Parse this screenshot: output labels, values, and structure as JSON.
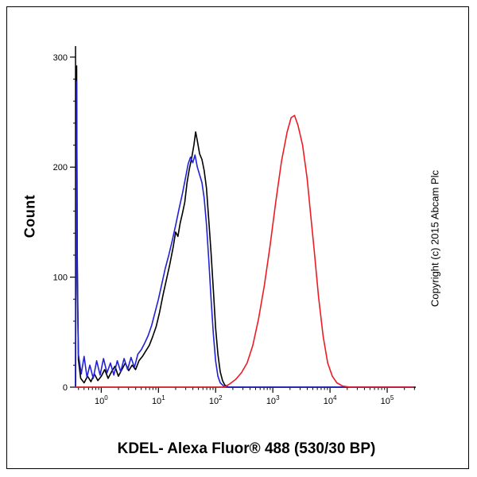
{
  "figure": {
    "copyright": "Copyright (c) 2015 Abcam Plc"
  },
  "chart_data": {
    "type": "line",
    "title": "",
    "xlabel": "KDEL- Alexa Fluor® 488 (530/30 BP)",
    "ylabel": "Count",
    "x_scale": "log10",
    "xlim_log10": [
      -0.45,
      5.5
    ],
    "ylim": [
      0,
      310
    ],
    "x_major_ticks_exponents": [
      0,
      1,
      2,
      3,
      4,
      5
    ],
    "y_ticks": [
      0,
      100,
      200,
      300
    ],
    "grid": false,
    "legend": "none",
    "series": [
      {
        "name": "black",
        "color": "#000000",
        "points": [
          [
            -0.45,
            0
          ],
          [
            -0.44,
            150
          ],
          [
            -0.43,
            292
          ],
          [
            -0.42,
            120
          ],
          [
            -0.4,
            25
          ],
          [
            -0.36,
            8
          ],
          [
            -0.3,
            4
          ],
          [
            -0.24,
            10
          ],
          [
            -0.18,
            5
          ],
          [
            -0.12,
            12
          ],
          [
            -0.06,
            6
          ],
          [
            0.0,
            10
          ],
          [
            0.06,
            16
          ],
          [
            0.12,
            8
          ],
          [
            0.18,
            14
          ],
          [
            0.24,
            19
          ],
          [
            0.3,
            10
          ],
          [
            0.36,
            16
          ],
          [
            0.42,
            22
          ],
          [
            0.48,
            15
          ],
          [
            0.54,
            20
          ],
          [
            0.6,
            16
          ],
          [
            0.66,
            24
          ],
          [
            0.72,
            28
          ],
          [
            0.78,
            33
          ],
          [
            0.84,
            38
          ],
          [
            0.9,
            46
          ],
          [
            0.96,
            55
          ],
          [
            1.02,
            68
          ],
          [
            1.08,
            84
          ],
          [
            1.14,
            98
          ],
          [
            1.2,
            112
          ],
          [
            1.26,
            128
          ],
          [
            1.3,
            141
          ],
          [
            1.34,
            137
          ],
          [
            1.38,
            149
          ],
          [
            1.42,
            158
          ],
          [
            1.46,
            168
          ],
          [
            1.5,
            186
          ],
          [
            1.54,
            198
          ],
          [
            1.58,
            208
          ],
          [
            1.62,
            220
          ],
          [
            1.65,
            232
          ],
          [
            1.68,
            224
          ],
          [
            1.72,
            212
          ],
          [
            1.76,
            207
          ],
          [
            1.8,
            197
          ],
          [
            1.84,
            181
          ],
          [
            1.88,
            152
          ],
          [
            1.92,
            122
          ],
          [
            1.96,
            88
          ],
          [
            2.0,
            54
          ],
          [
            2.04,
            30
          ],
          [
            2.08,
            14
          ],
          [
            2.12,
            6
          ],
          [
            2.16,
            2
          ],
          [
            2.22,
            0
          ],
          [
            5.45,
            0
          ]
        ]
      },
      {
        "name": "blue",
        "color": "#2121d6",
        "points": [
          [
            -0.45,
            0
          ],
          [
            -0.44,
            140
          ],
          [
            -0.43,
            278
          ],
          [
            -0.42,
            100
          ],
          [
            -0.4,
            30
          ],
          [
            -0.35,
            12
          ],
          [
            -0.3,
            28
          ],
          [
            -0.25,
            9
          ],
          [
            -0.2,
            20
          ],
          [
            -0.14,
            8
          ],
          [
            -0.08,
            24
          ],
          [
            -0.02,
            11
          ],
          [
            0.04,
            26
          ],
          [
            0.1,
            13
          ],
          [
            0.16,
            22
          ],
          [
            0.22,
            11
          ],
          [
            0.28,
            24
          ],
          [
            0.34,
            14
          ],
          [
            0.4,
            26
          ],
          [
            0.46,
            16
          ],
          [
            0.52,
            27
          ],
          [
            0.58,
            18
          ],
          [
            0.64,
            30
          ],
          [
            0.7,
            34
          ],
          [
            0.76,
            40
          ],
          [
            0.82,
            47
          ],
          [
            0.88,
            56
          ],
          [
            0.94,
            68
          ],
          [
            1.0,
            80
          ],
          [
            1.06,
            94
          ],
          [
            1.12,
            108
          ],
          [
            1.18,
            120
          ],
          [
            1.24,
            133
          ],
          [
            1.3,
            147
          ],
          [
            1.36,
            162
          ],
          [
            1.42,
            176
          ],
          [
            1.48,
            192
          ],
          [
            1.52,
            203
          ],
          [
            1.56,
            209
          ],
          [
            1.6,
            204
          ],
          [
            1.64,
            211
          ],
          [
            1.68,
            200
          ],
          [
            1.72,
            193
          ],
          [
            1.76,
            186
          ],
          [
            1.8,
            172
          ],
          [
            1.84,
            148
          ],
          [
            1.88,
            116
          ],
          [
            1.92,
            80
          ],
          [
            1.96,
            48
          ],
          [
            2.0,
            24
          ],
          [
            2.04,
            10
          ],
          [
            2.08,
            4
          ],
          [
            2.14,
            1
          ],
          [
            2.2,
            0
          ],
          [
            5.45,
            0
          ]
        ]
      },
      {
        "name": "red",
        "color": "#ed1c24",
        "points": [
          [
            -0.45,
            0
          ],
          [
            2.15,
            0
          ],
          [
            2.25,
            3
          ],
          [
            2.35,
            7
          ],
          [
            2.45,
            13
          ],
          [
            2.55,
            22
          ],
          [
            2.65,
            38
          ],
          [
            2.75,
            62
          ],
          [
            2.85,
            92
          ],
          [
            2.95,
            128
          ],
          [
            3.05,
            168
          ],
          [
            3.15,
            205
          ],
          [
            3.25,
            232
          ],
          [
            3.32,
            245
          ],
          [
            3.38,
            247
          ],
          [
            3.44,
            238
          ],
          [
            3.52,
            220
          ],
          [
            3.6,
            190
          ],
          [
            3.66,
            158
          ],
          [
            3.72,
            126
          ],
          [
            3.8,
            82
          ],
          [
            3.88,
            46
          ],
          [
            3.96,
            22
          ],
          [
            4.04,
            10
          ],
          [
            4.12,
            4
          ],
          [
            4.22,
            1
          ],
          [
            4.35,
            0
          ],
          [
            5.45,
            0
          ]
        ]
      }
    ]
  }
}
